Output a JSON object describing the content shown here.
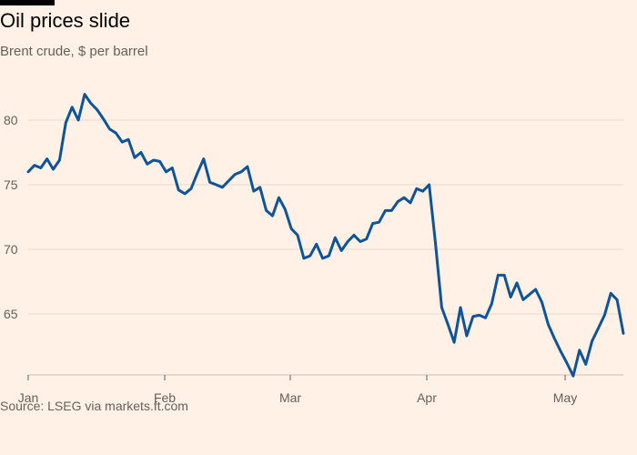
{
  "title": "Oil prices slide",
  "subtitle": "Brent crude, $ per barrel",
  "source": "Source: LSEG via markets.ft.com",
  "colors": {
    "background": "#fff1e5",
    "line": "#0f5499",
    "grid": "#e6d9ce",
    "text": "#66605c"
  },
  "chart_data": {
    "type": "line",
    "title": "Oil prices slide",
    "subtitle": "Brent crude, $ per barrel",
    "xlabel": "",
    "ylabel": "",
    "ylim": [
      60,
      83
    ],
    "y_ticks": [
      65,
      70,
      75,
      80
    ],
    "x_ticks": [
      "Jan",
      "Feb",
      "Mar",
      "Apr",
      "May"
    ],
    "grid": true,
    "series": [
      {
        "values": [
          76.0,
          76.5,
          76.3,
          77.0,
          76.2,
          76.9,
          79.8,
          81.0,
          80.0,
          82.0,
          81.3,
          80.8,
          80.1,
          79.3,
          79.0,
          78.3,
          78.5,
          77.1,
          77.5,
          76.6,
          76.9,
          76.8,
          76.0,
          76.3,
          74.6,
          74.3,
          74.7,
          75.9,
          77.0,
          75.2,
          75.0,
          74.8,
          75.3,
          75.8,
          76.0,
          76.4,
          74.5,
          74.8,
          73.0,
          72.6,
          74.0,
          73.1,
          71.6,
          71.1,
          69.3,
          69.5,
          70.4,
          69.3,
          69.5,
          70.9,
          69.9,
          70.6,
          71.1,
          70.6,
          70.8,
          72.0,
          72.1,
          73.0,
          73.0,
          73.7,
          74.0,
          73.6,
          74.7,
          74.5,
          75.0,
          70.5,
          65.5,
          64.2,
          62.8,
          65.5,
          63.3,
          64.8,
          64.9,
          64.7,
          65.8,
          68.0,
          68.0,
          66.3,
          67.4,
          66.1,
          66.5,
          66.9,
          65.9,
          64.2,
          63.1,
          62.1,
          61.2,
          60.2,
          62.2,
          61.1,
          62.9,
          63.9,
          64.9,
          66.6,
          66.1,
          63.5
        ]
      }
    ]
  }
}
